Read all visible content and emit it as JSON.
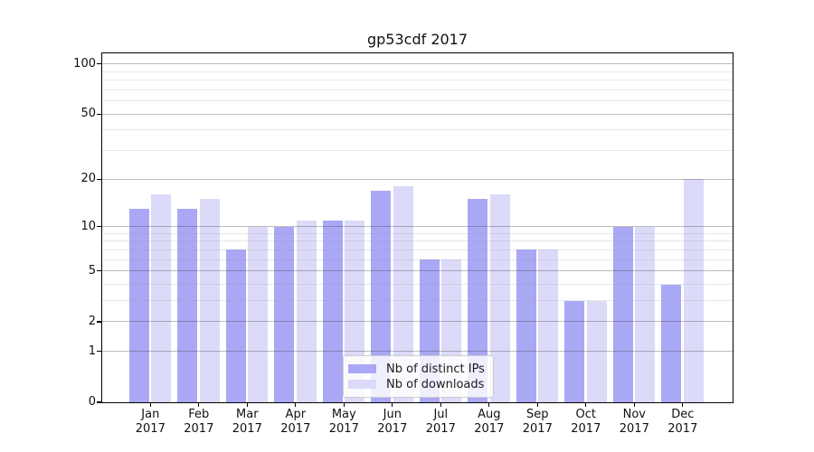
{
  "chart_data": {
    "type": "bar",
    "title": "gp53cdf 2017",
    "categories": [
      "Jan",
      "Feb",
      "Mar",
      "Apr",
      "May",
      "Jun",
      "Jul",
      "Aug",
      "Sep",
      "Oct",
      "Nov",
      "Dec"
    ],
    "x_year_label": "2017",
    "series": [
      {
        "name": "Nb of distinct IPs",
        "color": "#aaa8f5",
        "values": [
          13,
          13,
          7,
          10,
          11,
          17,
          6,
          15,
          7,
          3,
          10,
          4
        ]
      },
      {
        "name": "Nb of downloads",
        "color": "#dbdaf9",
        "values": [
          16,
          15,
          10,
          11,
          11,
          18,
          6,
          16,
          7,
          3,
          10,
          20
        ]
      }
    ],
    "yscale": "log1p",
    "ylim": [
      0,
      117
    ],
    "y_major_ticks": [
      0,
      1,
      2,
      5,
      10,
      20,
      50,
      100
    ],
    "y_minor_ticks": [
      3,
      4,
      6,
      7,
      8,
      9,
      30,
      40,
      60,
      70,
      80,
      90
    ],
    "grid": true,
    "legend_position": "lower center"
  },
  "colors": {
    "major_grid": "rgba(60,60,60,0.34)",
    "minor_grid": "rgba(150,150,150,0.22)",
    "axis": "#000000",
    "background": "#ffffff"
  }
}
